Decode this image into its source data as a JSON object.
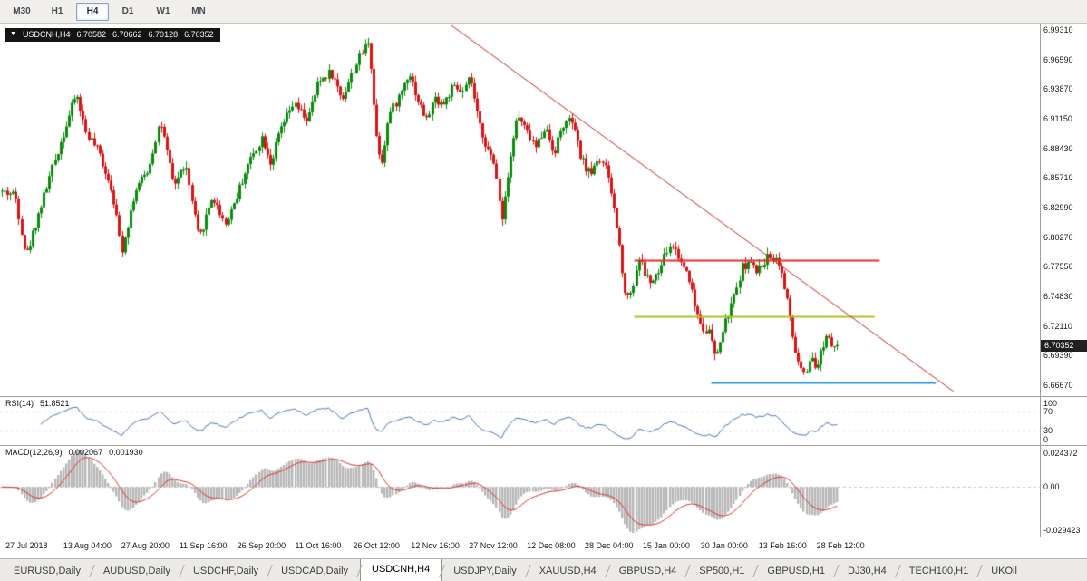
{
  "toolbar": {
    "timeframes": [
      {
        "label": "M30",
        "active": false
      },
      {
        "label": "H1",
        "active": false
      },
      {
        "label": "H4",
        "active": true
      },
      {
        "label": "D1",
        "active": false
      },
      {
        "label": "W1",
        "active": false
      },
      {
        "label": "MN",
        "active": false
      }
    ]
  },
  "chart_header": {
    "symbol_period": "USDCNH,H4",
    "open": "6.70582",
    "high": "6.70662",
    "low": "6.70128",
    "close": "6.70352"
  },
  "price_axis": {
    "labels": [
      "6.99310",
      "6.96590",
      "6.93870",
      "6.91150",
      "6.88430",
      "6.85710",
      "6.82990",
      "6.80270",
      "6.77550",
      "6.74830",
      "6.72110",
      "6.69390",
      "6.66670"
    ],
    "current": "6.70352"
  },
  "rsi_panel": {
    "label": "RSI(14)",
    "value": "51.8521",
    "levels": [
      "100",
      "70",
      "30",
      "0"
    ]
  },
  "macd_panel": {
    "label": "MACD(12,26,9)",
    "value1": "0.002067",
    "value2": "0.001930",
    "axis": [
      "0.024372",
      "0.00",
      "-0.029423"
    ]
  },
  "time_axis": {
    "labels": [
      "27 Jul 2018",
      "13 Aug 04:00",
      "27 Aug 20:00",
      "11 Sep 16:00",
      "26 Sep 20:00",
      "11 Oct 16:00",
      "26 Oct 12:00",
      "12 Nov 16:00",
      "27 Nov 12:00",
      "12 Dec 08:00",
      "28 Dec 04:00",
      "15 Jan 00:00",
      "30 Jan 00:00",
      "13 Feb 16:00",
      "28 Feb 12:00"
    ]
  },
  "bottom_tabs": {
    "items": [
      {
        "label": "EURUSD,Daily",
        "active": false
      },
      {
        "label": "AUDUSD,Daily",
        "active": false
      },
      {
        "label": "USDCHF,Daily",
        "active": false
      },
      {
        "label": "USDCAD,Daily",
        "active": false
      },
      {
        "label": "USDCNH,H4",
        "active": true
      },
      {
        "label": "USDJPY,Daily",
        "active": false
      },
      {
        "label": "XAUUSD,H4",
        "active": false
      },
      {
        "label": "GBPUSD,H4",
        "active": false
      },
      {
        "label": "SP500,H1",
        "active": false
      },
      {
        "label": "GBPUSD,H1",
        "active": false
      },
      {
        "label": "DJ30,H4",
        "active": false
      },
      {
        "label": "TECH100,H1",
        "active": false
      },
      {
        "label": "UKOil",
        "active": false
      }
    ]
  },
  "chart_data": {
    "type": "candlestick",
    "symbol": "USDCNH",
    "timeframe": "H4",
    "ylim": [
      6.6567,
      6.9989
    ],
    "candle_count": 300,
    "plot_width_frac": 0.806,
    "seed": 42,
    "noise": 0.004,
    "wick_noise": 0.006,
    "last_close": 6.70352,
    "price_path": [
      [
        0.0,
        6.845
      ],
      [
        0.019,
        6.842
      ],
      [
        0.032,
        6.785
      ],
      [
        0.049,
        6.83
      ],
      [
        0.065,
        6.87
      ],
      [
        0.092,
        6.935
      ],
      [
        0.103,
        6.9
      ],
      [
        0.119,
        6.88
      ],
      [
        0.135,
        6.845
      ],
      [
        0.146,
        6.79
      ],
      [
        0.162,
        6.845
      ],
      [
        0.178,
        6.865
      ],
      [
        0.192,
        6.91
      ],
      [
        0.208,
        6.85
      ],
      [
        0.222,
        6.87
      ],
      [
        0.238,
        6.8
      ],
      [
        0.254,
        6.84
      ],
      [
        0.27,
        6.815
      ],
      [
        0.283,
        6.84
      ],
      [
        0.297,
        6.87
      ],
      [
        0.314,
        6.895
      ],
      [
        0.324,
        6.87
      ],
      [
        0.335,
        6.9
      ],
      [
        0.351,
        6.925
      ],
      [
        0.368,
        6.91
      ],
      [
        0.381,
        6.945
      ],
      [
        0.395,
        6.955
      ],
      [
        0.409,
        6.93
      ],
      [
        0.422,
        6.955
      ],
      [
        0.435,
        6.975
      ],
      [
        0.441,
        6.985
      ],
      [
        0.449,
        6.9
      ],
      [
        0.456,
        6.87
      ],
      [
        0.465,
        6.915
      ],
      [
        0.476,
        6.93
      ],
      [
        0.489,
        6.955
      ],
      [
        0.499,
        6.93
      ],
      [
        0.51,
        6.91
      ],
      [
        0.519,
        6.93
      ],
      [
        0.53,
        6.925
      ],
      [
        0.541,
        6.94
      ],
      [
        0.554,
        6.935
      ],
      [
        0.562,
        6.95
      ],
      [
        0.571,
        6.91
      ],
      [
        0.582,
        6.885
      ],
      [
        0.592,
        6.865
      ],
      [
        0.6,
        6.82
      ],
      [
        0.608,
        6.87
      ],
      [
        0.618,
        6.915
      ],
      [
        0.629,
        6.9
      ],
      [
        0.64,
        6.885
      ],
      [
        0.651,
        6.905
      ],
      [
        0.662,
        6.88
      ],
      [
        0.672,
        6.905
      ],
      [
        0.683,
        6.91
      ],
      [
        0.694,
        6.875
      ],
      [
        0.705,
        6.86
      ],
      [
        0.714,
        6.875
      ],
      [
        0.722,
        6.87
      ],
      [
        0.731,
        6.84
      ],
      [
        0.739,
        6.8
      ],
      [
        0.748,
        6.745
      ],
      [
        0.757,
        6.76
      ],
      [
        0.763,
        6.785
      ],
      [
        0.77,
        6.77
      ],
      [
        0.778,
        6.76
      ],
      [
        0.787,
        6.77
      ],
      [
        0.796,
        6.79
      ],
      [
        0.804,
        6.795
      ],
      [
        0.813,
        6.78
      ],
      [
        0.822,
        6.77
      ],
      [
        0.83,
        6.74
      ],
      [
        0.839,
        6.72
      ],
      [
        0.848,
        6.715
      ],
      [
        0.854,
        6.69
      ],
      [
        0.861,
        6.71
      ],
      [
        0.869,
        6.73
      ],
      [
        0.878,
        6.75
      ],
      [
        0.886,
        6.775
      ],
      [
        0.895,
        6.78
      ],
      [
        0.904,
        6.77
      ],
      [
        0.912,
        6.78
      ],
      [
        0.921,
        6.787
      ],
      [
        0.93,
        6.78
      ],
      [
        0.936,
        6.76
      ],
      [
        0.943,
        6.73
      ],
      [
        0.949,
        6.7
      ],
      [
        0.956,
        6.68
      ],
      [
        0.962,
        6.675
      ],
      [
        0.969,
        6.69
      ],
      [
        0.975,
        6.68
      ],
      [
        0.981,
        6.7
      ],
      [
        0.988,
        6.715
      ],
      [
        0.994,
        6.705
      ],
      [
        1.0,
        6.7035
      ]
    ],
    "overlays": {
      "trendline": {
        "x1_frac": 0.434,
        "price1": 6.9973,
        "x2_frac": 0.917,
        "price2": 6.6609,
        "color": "#cc2626",
        "width": 1
      },
      "hlines": [
        {
          "price": 6.7816,
          "x1_frac": 0.61,
          "x2_frac": 0.846,
          "color": "#e23030",
          "width": 2
        },
        {
          "price": 6.73,
          "x1_frac": 0.61,
          "x2_frac": 0.841,
          "color": "#b2bd26",
          "width": 2
        },
        {
          "price": 6.6692,
          "x1_frac": 0.684,
          "x2_frac": 0.9,
          "color": "#2196e8",
          "width": 2
        }
      ]
    },
    "indicators": {
      "rsi": {
        "period": 14,
        "levels": [
          70,
          30
        ]
      },
      "macd": {
        "fast": 12,
        "slow": 26,
        "signal": 9
      }
    },
    "colors": {
      "up": "#0c8a0c",
      "down": "#d81414",
      "rsi_line": "#4976b8",
      "level_dash": "#aeb9cc",
      "macd_hist": "#b6b6b6",
      "macd_signal": "#e03030",
      "zero_dash": "#c8c8c8",
      "separator": "#9e9e9e"
    }
  }
}
